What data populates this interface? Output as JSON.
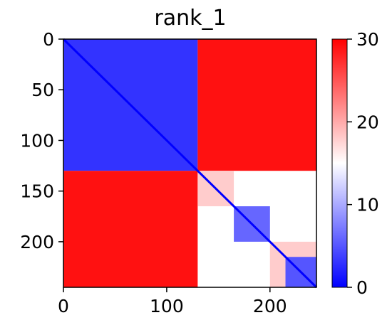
{
  "chart_data": {
    "type": "heatmap",
    "title": "rank_1",
    "xlabel": "",
    "ylabel": "",
    "x_range": [
      0,
      245
    ],
    "y_range": [
      0,
      245
    ],
    "x_ticks": [
      0,
      100,
      200
    ],
    "y_ticks": [
      0,
      50,
      100,
      150,
      200
    ],
    "colormap": "bwr",
    "colors": {
      "low": "#0000ff",
      "mid": "#ffffff",
      "high": "#ff0000"
    },
    "colorbar": {
      "range": [
        0,
        30
      ],
      "ticks": [
        0,
        10,
        20,
        30
      ]
    },
    "grid": false,
    "blocks": [
      {
        "rows": [
          0,
          130
        ],
        "cols": [
          0,
          130
        ],
        "value": 3
      },
      {
        "rows": [
          0,
          130
        ],
        "cols": [
          130,
          245
        ],
        "value": 29
      },
      {
        "rows": [
          130,
          245
        ],
        "cols": [
          0,
          130
        ],
        "value": 29
      },
      {
        "rows": [
          130,
          165
        ],
        "cols": [
          130,
          165
        ],
        "value": 18
      },
      {
        "rows": [
          165,
          200
        ],
        "cols": [
          165,
          200
        ],
        "value": 6
      },
      {
        "rows": [
          200,
          245
        ],
        "cols": [
          200,
          245
        ],
        "value": 18
      },
      {
        "rows": [
          215,
          245
        ],
        "cols": [
          215,
          245
        ],
        "value": 5
      }
    ],
    "diagonal_value": 0
  }
}
